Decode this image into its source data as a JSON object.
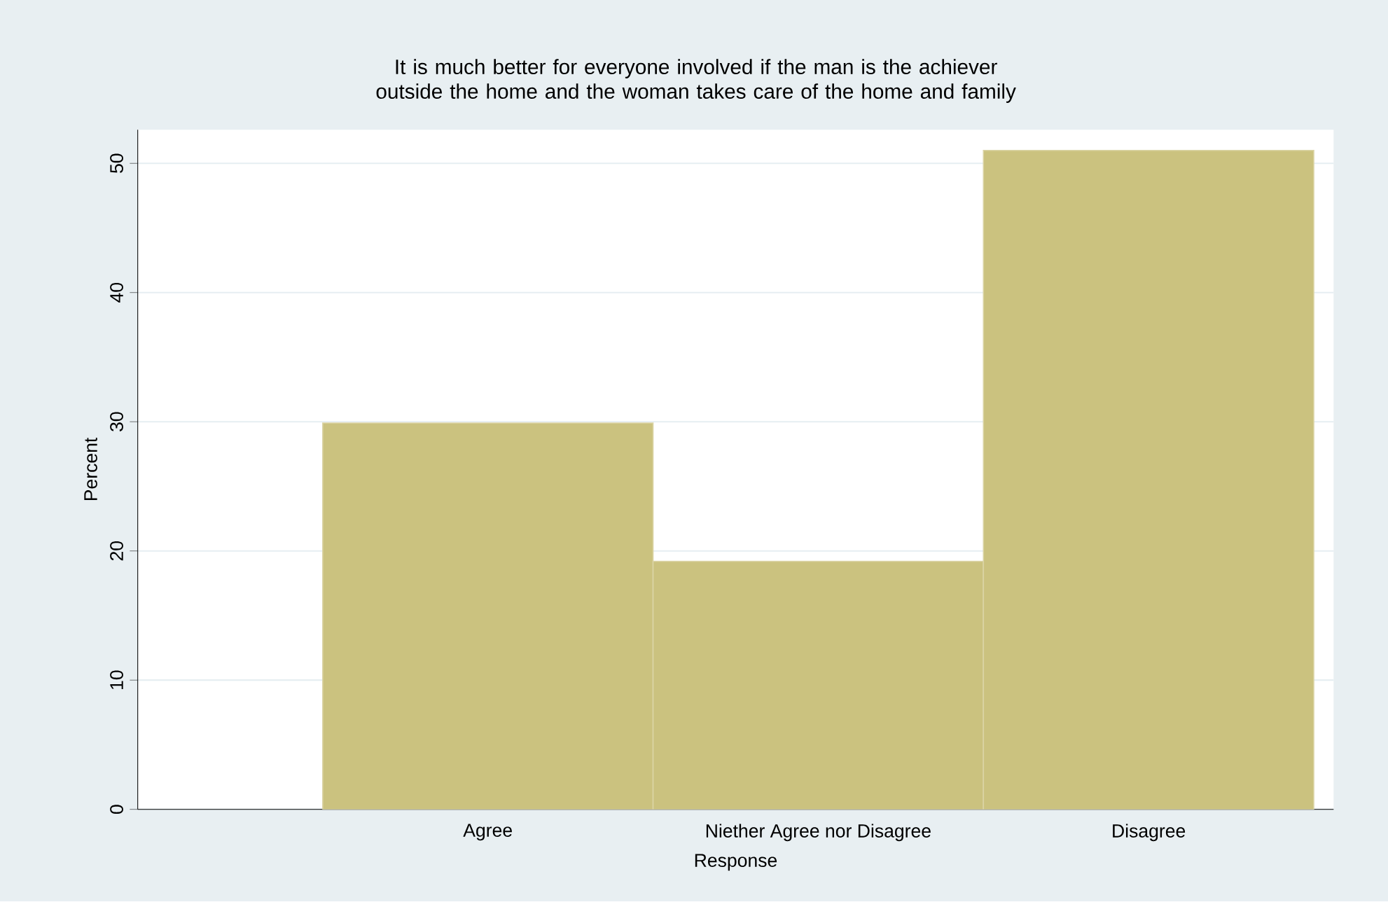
{
  "chart_data": {
    "type": "bar",
    "title": "It is much better for everyone involved if the man is the achiever outside the home and the woman takes care of the home and family",
    "xlabel": "Response",
    "ylabel": "Percent",
    "categories": [
      "Agree",
      "Niether Agree nor Disagree",
      "Disagree"
    ],
    "values": [
      29.9,
      19.2,
      51.0
    ],
    "color": "#cbc27f",
    "ylim": [
      0,
      52.6
    ],
    "yticks": [
      0,
      10,
      20,
      30,
      40,
      50
    ],
    "grid": "y"
  }
}
